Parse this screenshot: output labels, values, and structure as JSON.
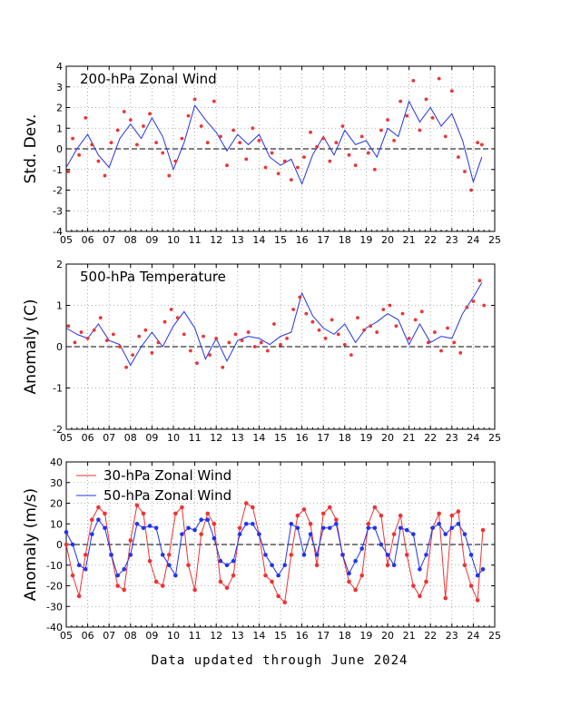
{
  "footer": "Data updated through June 2024",
  "colors": {
    "red": "#ee3333",
    "blue": "#2233ee",
    "grid": "#999999"
  },
  "chart_data": [
    {
      "type": "line",
      "title": "200-hPa Zonal Wind",
      "ylabel": "Std. Dev.",
      "xlim": [
        2005,
        2025
      ],
      "ylim": [
        -4,
        4
      ],
      "xticks": [
        "05",
        "06",
        "07",
        "08",
        "09",
        "10",
        "11",
        "12",
        "13",
        "14",
        "15",
        "16",
        "17",
        "18",
        "19",
        "20",
        "21",
        "22",
        "23",
        "24",
        "25"
      ],
      "yticks": [
        "-4",
        "-3",
        "-2",
        "-1",
        "0",
        "1",
        "2",
        "3",
        "4"
      ],
      "grid": true,
      "series": [
        {
          "color": "#2233ee",
          "style": "line",
          "x": [
            2005.0,
            2005.5,
            2006.0,
            2006.5,
            2007.0,
            2007.5,
            2008.0,
            2008.5,
            2009.0,
            2009.5,
            2010.0,
            2010.5,
            2011.0,
            2011.5,
            2012.0,
            2012.5,
            2013.0,
            2013.5,
            2014.0,
            2014.5,
            2015.0,
            2015.5,
            2016.0,
            2016.5,
            2017.0,
            2017.5,
            2018.0,
            2018.5,
            2019.0,
            2019.5,
            2020.0,
            2020.5,
            2021.0,
            2021.5,
            2022.0,
            2022.5,
            2023.0,
            2023.5,
            2024.0,
            2024.4
          ],
          "y": [
            -0.9,
            0.0,
            0.7,
            -0.3,
            -0.9,
            0.5,
            1.2,
            0.5,
            1.5,
            0.6,
            -1.0,
            0.3,
            2.1,
            1.4,
            0.8,
            -0.1,
            0.7,
            0.2,
            0.7,
            -0.4,
            -0.8,
            -0.5,
            -1.7,
            -0.3,
            0.6,
            -0.3,
            0.9,
            0.2,
            0.4,
            -0.4,
            1.0,
            0.6,
            2.3,
            1.3,
            2.0,
            1.1,
            1.7,
            0.4,
            -1.6,
            -0.4
          ]
        },
        {
          "color": "#ee3333",
          "style": "scatter",
          "x": [
            2005.1,
            2005.3,
            2005.6,
            2005.9,
            2006.2,
            2006.5,
            2006.8,
            2007.1,
            2007.4,
            2007.7,
            2008.0,
            2008.3,
            2008.6,
            2008.9,
            2009.2,
            2009.5,
            2009.8,
            2010.1,
            2010.4,
            2010.7,
            2011.0,
            2011.3,
            2011.6,
            2011.9,
            2012.2,
            2012.5,
            2012.8,
            2013.1,
            2013.4,
            2013.7,
            2014.0,
            2014.3,
            2014.6,
            2014.9,
            2015.2,
            2015.5,
            2015.8,
            2016.1,
            2016.4,
            2016.7,
            2017.0,
            2017.3,
            2017.6,
            2017.9,
            2018.2,
            2018.5,
            2018.8,
            2019.1,
            2019.4,
            2019.7,
            2020.0,
            2020.3,
            2020.6,
            2020.9,
            2021.2,
            2021.5,
            2021.8,
            2022.1,
            2022.4,
            2022.7,
            2023.0,
            2023.3,
            2023.6,
            2023.9,
            2024.2,
            2024.4
          ],
          "y": [
            -1.1,
            0.5,
            -0.3,
            1.5,
            0.2,
            -0.6,
            -1.3,
            0.3,
            0.9,
            1.8,
            1.4,
            0.2,
            1.1,
            1.7,
            0.3,
            -0.2,
            -1.3,
            -0.6,
            0.5,
            1.6,
            2.4,
            1.1,
            0.3,
            2.3,
            0.6,
            -0.8,
            0.9,
            0.3,
            -0.5,
            1.0,
            0.4,
            -0.9,
            -0.2,
            -1.2,
            -0.6,
            -1.5,
            -0.9,
            -0.4,
            0.8,
            0.1,
            0.5,
            -0.6,
            0.3,
            1.1,
            -0.3,
            -0.8,
            0.6,
            -0.2,
            -1.0,
            0.9,
            1.4,
            0.4,
            2.3,
            1.6,
            3.3,
            0.9,
            2.4,
            1.5,
            3.4,
            0.6,
            2.8,
            -0.4,
            -1.1,
            -2.0,
            0.3,
            0.2
          ]
        }
      ]
    },
    {
      "type": "line",
      "title": "500-hPa Temperature",
      "ylabel": "Anomaly (C)",
      "xlim": [
        2005,
        2025
      ],
      "ylim": [
        -2,
        2
      ],
      "xticks": [
        "05",
        "06",
        "07",
        "08",
        "09",
        "10",
        "11",
        "12",
        "13",
        "14",
        "15",
        "16",
        "17",
        "18",
        "19",
        "20",
        "21",
        "22",
        "23",
        "24",
        "25"
      ],
      "yticks": [
        "-2",
        "-1",
        "0",
        "1",
        "2"
      ],
      "grid": true,
      "series": [
        {
          "color": "#2233ee",
          "style": "line",
          "x": [
            2005.0,
            2005.5,
            2006.0,
            2006.5,
            2007.0,
            2007.5,
            2008.0,
            2008.5,
            2009.0,
            2009.5,
            2010.0,
            2010.5,
            2011.0,
            2011.5,
            2012.0,
            2012.5,
            2013.0,
            2013.5,
            2014.0,
            2014.5,
            2015.0,
            2015.5,
            2016.0,
            2016.5,
            2017.0,
            2017.5,
            2018.0,
            2018.5,
            2019.0,
            2019.5,
            2020.0,
            2020.5,
            2021.0,
            2021.5,
            2022.0,
            2022.5,
            2023.0,
            2023.5,
            2024.0,
            2024.4
          ],
          "y": [
            0.45,
            0.3,
            0.2,
            0.55,
            0.15,
            0.05,
            -0.45,
            0.0,
            0.35,
            0.0,
            0.5,
            0.85,
            0.45,
            -0.3,
            0.2,
            -0.35,
            0.15,
            0.25,
            0.2,
            0.05,
            0.25,
            0.35,
            1.3,
            0.75,
            0.45,
            0.3,
            0.55,
            0.1,
            0.45,
            0.6,
            0.8,
            0.65,
            0.05,
            0.55,
            0.1,
            0.25,
            0.2,
            0.8,
            1.2,
            1.55
          ]
        },
        {
          "color": "#ee3333",
          "style": "scatter",
          "x": [
            2005.1,
            2005.4,
            2005.7,
            2006.0,
            2006.3,
            2006.6,
            2006.9,
            2007.2,
            2007.5,
            2007.8,
            2008.1,
            2008.4,
            2008.7,
            2009.0,
            2009.3,
            2009.6,
            2009.9,
            2010.2,
            2010.5,
            2010.8,
            2011.1,
            2011.4,
            2011.7,
            2012.0,
            2012.3,
            2012.6,
            2012.9,
            2013.2,
            2013.5,
            2013.8,
            2014.1,
            2014.4,
            2014.7,
            2015.0,
            2015.3,
            2015.6,
            2015.9,
            2016.2,
            2016.5,
            2016.8,
            2017.1,
            2017.4,
            2017.7,
            2018.0,
            2018.3,
            2018.6,
            2018.9,
            2019.2,
            2019.5,
            2019.8,
            2020.1,
            2020.4,
            2020.7,
            2021.0,
            2021.3,
            2021.6,
            2021.9,
            2022.2,
            2022.5,
            2022.8,
            2023.1,
            2023.4,
            2023.7,
            2024.0,
            2024.3,
            2024.5
          ],
          "y": [
            0.5,
            0.1,
            0.35,
            0.2,
            0.4,
            0.7,
            0.15,
            0.3,
            0.0,
            -0.5,
            -0.2,
            0.25,
            0.4,
            -0.15,
            0.1,
            0.6,
            0.9,
            0.7,
            0.3,
            -0.1,
            -0.4,
            0.25,
            -0.2,
            0.2,
            -0.5,
            0.1,
            0.3,
            0.15,
            0.35,
            0.0,
            0.1,
            -0.1,
            0.55,
            0.05,
            0.2,
            0.9,
            1.2,
            0.8,
            0.6,
            0.4,
            0.2,
            0.65,
            0.3,
            0.05,
            -0.2,
            0.7,
            0.4,
            0.5,
            0.35,
            0.9,
            1.0,
            0.5,
            0.8,
            0.2,
            0.65,
            0.85,
            0.1,
            0.35,
            -0.1,
            0.45,
            0.1,
            -0.15,
            0.95,
            1.1,
            1.6,
            1.0
          ]
        }
      ]
    },
    {
      "type": "line",
      "title": "",
      "ylabel": "Anomaly (m/s)",
      "xlim": [
        2005,
        2025
      ],
      "ylim": [
        -40,
        40
      ],
      "xticks": [
        "05",
        "06",
        "07",
        "08",
        "09",
        "10",
        "11",
        "12",
        "13",
        "14",
        "15",
        "16",
        "17",
        "18",
        "19",
        "20",
        "21",
        "22",
        "23",
        "24",
        "25"
      ],
      "yticks": [
        "-40",
        "-30",
        "-20",
        "-10",
        "0",
        "10",
        "20",
        "30",
        "40"
      ],
      "grid": true,
      "legend": "top-left",
      "series": [
        {
          "name": "30-hPa Zonal Wind",
          "color": "#ee3333",
          "x": [
            2005.0,
            2005.3,
            2005.6,
            2005.9,
            2006.2,
            2006.5,
            2006.8,
            2007.1,
            2007.4,
            2007.7,
            2008.0,
            2008.3,
            2008.6,
            2008.9,
            2009.2,
            2009.5,
            2009.8,
            2010.1,
            2010.4,
            2010.7,
            2011.0,
            2011.3,
            2011.6,
            2011.9,
            2012.2,
            2012.5,
            2012.8,
            2013.1,
            2013.4,
            2013.7,
            2014.0,
            2014.3,
            2014.6,
            2014.9,
            2015.2,
            2015.5,
            2015.8,
            2016.1,
            2016.4,
            2016.7,
            2017.0,
            2017.3,
            2017.6,
            2017.9,
            2018.2,
            2018.5,
            2018.8,
            2019.1,
            2019.4,
            2019.7,
            2020.0,
            2020.3,
            2020.6,
            2020.9,
            2021.2,
            2021.5,
            2021.8,
            2022.1,
            2022.4,
            2022.7,
            2023.0,
            2023.3,
            2023.6,
            2023.9,
            2024.2,
            2024.45
          ],
          "y": [
            0,
            -15,
            -25,
            -5,
            12,
            18,
            15,
            -5,
            -20,
            -22,
            2,
            19,
            15,
            -8,
            -18,
            -20,
            -5,
            15,
            18,
            -10,
            -22,
            5,
            15,
            10,
            -18,
            -21,
            -15,
            8,
            20,
            18,
            5,
            -15,
            -18,
            -25,
            -28,
            -5,
            14,
            17,
            10,
            -10,
            15,
            18,
            12,
            -5,
            -18,
            -22,
            -15,
            10,
            18,
            14,
            -10,
            5,
            14,
            -5,
            -20,
            -25,
            -18,
            8,
            15,
            -26,
            14,
            16,
            -10,
            -20,
            -27,
            7
          ]
        },
        {
          "name": "50-hPa Zonal Wind",
          "color": "#2233ee",
          "x": [
            2005.0,
            2005.3,
            2005.6,
            2005.9,
            2006.2,
            2006.5,
            2006.8,
            2007.1,
            2007.4,
            2007.7,
            2008.0,
            2008.3,
            2008.6,
            2008.9,
            2009.2,
            2009.5,
            2009.8,
            2010.1,
            2010.4,
            2010.7,
            2011.0,
            2011.3,
            2011.6,
            2011.9,
            2012.2,
            2012.5,
            2012.8,
            2013.1,
            2013.4,
            2013.7,
            2014.0,
            2014.3,
            2014.6,
            2014.9,
            2015.2,
            2015.5,
            2015.8,
            2016.1,
            2016.4,
            2016.7,
            2017.0,
            2017.3,
            2017.6,
            2017.9,
            2018.2,
            2018.5,
            2018.8,
            2019.1,
            2019.4,
            2019.7,
            2020.0,
            2020.3,
            2020.6,
            2020.9,
            2021.2,
            2021.5,
            2021.8,
            2022.1,
            2022.4,
            2022.7,
            2023.0,
            2023.3,
            2023.6,
            2023.9,
            2024.2,
            2024.45
          ],
          "y": [
            6,
            0,
            -10,
            -12,
            5,
            12,
            8,
            -5,
            -15,
            -12,
            -5,
            10,
            8,
            9,
            8,
            -5,
            -10,
            -15,
            5,
            8,
            7,
            12,
            12,
            3,
            -8,
            -10,
            -8,
            5,
            10,
            10,
            5,
            -5,
            -10,
            -15,
            -10,
            10,
            8,
            -5,
            5,
            -5,
            8,
            8,
            10,
            -5,
            -14,
            -8,
            -2,
            8,
            8,
            0,
            -5,
            -10,
            8,
            7,
            5,
            -12,
            -5,
            8,
            10,
            5,
            8,
            10,
            5,
            -5,
            -15,
            -12
          ]
        }
      ]
    }
  ]
}
